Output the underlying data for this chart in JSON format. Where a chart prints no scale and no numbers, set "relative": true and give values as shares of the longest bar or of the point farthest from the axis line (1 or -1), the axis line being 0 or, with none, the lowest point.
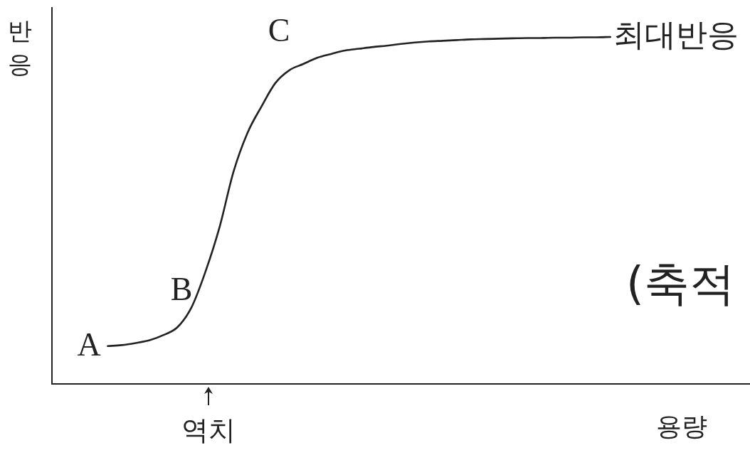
{
  "chart_data": {
    "type": "line",
    "relative": true,
    "tick_labels": false,
    "ylabel": "반응",
    "xlabel": "용량",
    "categories": [
      null,
      null,
      null,
      null,
      null,
      null,
      null,
      null,
      null,
      null,
      null,
      null,
      null,
      null,
      null,
      null,
      null,
      null,
      null,
      null,
      null,
      null,
      null,
      null,
      null,
      null,
      null,
      null,
      null,
      null,
      null,
      null,
      null,
      null,
      null,
      null,
      null,
      null,
      null,
      null,
      null,
      null,
      null,
      null,
      null,
      null,
      null,
      null,
      null,
      null,
      null
    ],
    "values": [
      null,
      null,
      null,
      null,
      0.109,
      0.112,
      0.118,
      0.126,
      0.141,
      0.164,
      0.221,
      0.324,
      0.451,
      0.611,
      0.723,
      0.799,
      0.867,
      0.904,
      0.922,
      0.94,
      0.951,
      0.961,
      0.966,
      0.971,
      0.975,
      0.98,
      0.984,
      0.987,
      0.989,
      0.991,
      0.993,
      0.994,
      0.995,
      0.996,
      0.997,
      0.997,
      0.998,
      0.998,
      0.999,
      0.999,
      1,
      null,
      null,
      null,
      null,
      null,
      null,
      null,
      null,
      null,
      null
    ],
    "color": "#222222",
    "annotations": [
      "A",
      "B",
      "C",
      "최대반응",
      "역치",
      "(축적"
    ]
  }
}
